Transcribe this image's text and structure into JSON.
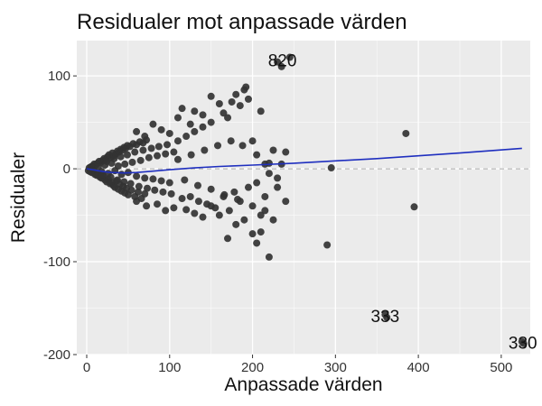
{
  "chart_data": {
    "type": "scatter",
    "title": "Residualer mot anpassade värden",
    "xlabel": "Anpassade värden",
    "ylabel": "Residualer",
    "xlim": [
      -12,
      535
    ],
    "ylim": [
      -200,
      138
    ],
    "x_ticks": [
      0,
      100,
      200,
      300,
      400,
      500
    ],
    "y_ticks": [
      -200,
      -100,
      0,
      100
    ],
    "x_tick_labels": [
      "0",
      "100",
      "200",
      "300",
      "400",
      "500"
    ],
    "y_tick_labels": [
      "-200",
      "-100",
      "0",
      "100"
    ],
    "grid": true,
    "reference_line_y": 0,
    "colors": {
      "panel_bg": "#ebebeb",
      "grid": "#ffffff",
      "points": "#333333",
      "smooth": "#1f2fbf",
      "reference": "#aaaaaa"
    },
    "series": [
      {
        "points": [
          [
            2,
            -2
          ],
          [
            3,
            1
          ],
          [
            4,
            -3
          ],
          [
            5,
            2
          ],
          [
            6,
            -4
          ],
          [
            7,
            3
          ],
          [
            8,
            -1
          ],
          [
            9,
            5
          ],
          [
            10,
            -6
          ],
          [
            11,
            4
          ],
          [
            12,
            -7
          ],
          [
            13,
            6
          ],
          [
            14,
            -5
          ],
          [
            15,
            8
          ],
          [
            16,
            -9
          ],
          [
            17,
            7
          ],
          [
            18,
            -10
          ],
          [
            19,
            9
          ],
          [
            20,
            -8
          ],
          [
            21,
            11
          ],
          [
            22,
            -12
          ],
          [
            23,
            10
          ],
          [
            24,
            -14
          ],
          [
            25,
            13
          ],
          [
            26,
            -11
          ],
          [
            27,
            15
          ],
          [
            28,
            -16
          ],
          [
            29,
            12
          ],
          [
            30,
            -15
          ],
          [
            31,
            17
          ],
          [
            32,
            -18
          ],
          [
            33,
            14
          ],
          [
            34,
            -20
          ],
          [
            35,
            16
          ],
          [
            36,
            -13
          ],
          [
            37,
            19
          ],
          [
            38,
            -22
          ],
          [
            39,
            18
          ],
          [
            40,
            -17
          ],
          [
            41,
            21
          ],
          [
            42,
            -24
          ],
          [
            43,
            20
          ],
          [
            44,
            -19
          ],
          [
            45,
            23
          ],
          [
            46,
            -26
          ],
          [
            47,
            22
          ],
          [
            48,
            -21
          ],
          [
            49,
            25
          ],
          [
            50,
            -28
          ],
          [
            52,
            24
          ],
          [
            54,
            -23
          ],
          [
            56,
            27
          ],
          [
            58,
            -30
          ],
          [
            60,
            26
          ],
          [
            62,
            -25
          ],
          [
            64,
            29
          ],
          [
            66,
            -32
          ],
          [
            68,
            28
          ],
          [
            70,
            -27
          ],
          [
            72,
            31
          ],
          [
            18,
            -3
          ],
          [
            22,
            4
          ],
          [
            26,
            -5
          ],
          [
            30,
            6
          ],
          [
            34,
            -2
          ],
          [
            38,
            3
          ],
          [
            42,
            -6
          ],
          [
            46,
            5
          ],
          [
            50,
            -4
          ],
          [
            55,
            7
          ],
          [
            60,
            -8
          ],
          [
            65,
            9
          ],
          [
            70,
            -10
          ],
          [
            75,
            12
          ],
          [
            80,
            -11
          ],
          [
            85,
            14
          ],
          [
            90,
            -13
          ],
          [
            95,
            16
          ],
          [
            100,
            -15
          ],
          [
            105,
            18
          ],
          [
            14,
            2
          ],
          [
            19,
            -6
          ],
          [
            24,
            8
          ],
          [
            29,
            -9
          ],
          [
            33,
            11
          ],
          [
            37,
            -12
          ],
          [
            41,
            13
          ],
          [
            45,
            -14
          ],
          [
            49,
            15
          ],
          [
            53,
            -16
          ],
          [
            58,
            18
          ],
          [
            63,
            -19
          ],
          [
            68,
            20
          ],
          [
            73,
            -21
          ],
          [
            78,
            22
          ],
          [
            82,
            -23
          ],
          [
            87,
            24
          ],
          [
            92,
            -25
          ],
          [
            97,
            26
          ],
          [
            102,
            -27
          ],
          [
            110,
            30
          ],
          [
            115,
            -32
          ],
          [
            120,
            35
          ],
          [
            125,
            -30
          ],
          [
            130,
            40
          ],
          [
            135,
            -35
          ],
          [
            140,
            45
          ],
          [
            145,
            -38
          ],
          [
            150,
            50
          ],
          [
            155,
            -42
          ],
          [
            110,
            10
          ],
          [
            118,
            -12
          ],
          [
            126,
            15
          ],
          [
            134,
            -18
          ],
          [
            142,
            20
          ],
          [
            150,
            -22
          ],
          [
            158,
            25
          ],
          [
            166,
            -28
          ],
          [
            174,
            30
          ],
          [
            182,
            -33
          ],
          [
            60,
            40
          ],
          [
            70,
            35
          ],
          [
            80,
            48
          ],
          [
            90,
            42
          ],
          [
            100,
            38
          ],
          [
            110,
            55
          ],
          [
            115,
            65
          ],
          [
            125,
            48
          ],
          [
            130,
            62
          ],
          [
            140,
            58
          ],
          [
            60,
            -35
          ],
          [
            72,
            -40
          ],
          [
            85,
            -38
          ],
          [
            95,
            -45
          ],
          [
            105,
            -42
          ],
          [
            120,
            -44
          ],
          [
            130,
            -48
          ],
          [
            140,
            -52
          ],
          [
            150,
            -40
          ],
          [
            160,
            -50
          ],
          [
            150,
            78
          ],
          [
            160,
            70
          ],
          [
            165,
            60
          ],
          [
            170,
            55
          ],
          [
            175,
            72
          ],
          [
            180,
            80
          ],
          [
            185,
            68
          ],
          [
            190,
            85
          ],
          [
            192,
            88
          ],
          [
            195,
            75
          ],
          [
            165,
            -30
          ],
          [
            172,
            -45
          ],
          [
            178,
            -25
          ],
          [
            185,
            -35
          ],
          [
            190,
            -55
          ],
          [
            195,
            -20
          ],
          [
            200,
            -40
          ],
          [
            205,
            -15
          ],
          [
            210,
            -50
          ],
          [
            215,
            -30
          ],
          [
            200,
            30
          ],
          [
            205,
            15
          ],
          [
            210,
            62
          ],
          [
            215,
            5
          ],
          [
            220,
            -5
          ],
          [
            225,
            20
          ],
          [
            230,
            -10
          ],
          [
            235,
            5
          ],
          [
            240,
            18
          ],
          [
            188,
            25
          ],
          [
            170,
            -75
          ],
          [
            180,
            -60
          ],
          [
            200,
            -70
          ],
          [
            205,
            -80
          ],
          [
            210,
            -68
          ],
          [
            220,
            -95
          ],
          [
            240,
            -35
          ],
          [
            230,
            -20
          ],
          [
            215,
            -45
          ],
          [
            225,
            -55
          ],
          [
            230,
            115
          ],
          [
            235,
            110
          ],
          [
            245,
            120
          ],
          [
            220,
            6
          ],
          [
            295,
            1
          ],
          [
            290,
            -82
          ],
          [
            385,
            38
          ],
          [
            395,
            -41
          ],
          [
            360,
            -157
          ],
          [
            362,
            -160
          ],
          [
            525,
            -186
          ],
          [
            527,
            -188
          ]
        ]
      }
    ],
    "smooth": {
      "x": [
        0,
        10,
        20,
        30,
        45,
        60,
        80,
        100,
        130,
        160,
        200,
        250,
        300,
        350,
        400,
        450,
        525
      ],
      "y": [
        0,
        -1.5,
        -3,
        -4,
        -4.5,
        -4,
        -2.5,
        -1,
        1,
        2.5,
        4,
        6,
        8.5,
        11,
        14,
        17,
        22
      ]
    },
    "annotations": [
      {
        "text": "820",
        "x": 236,
        "y": 117
      },
      {
        "text": "333",
        "x": 360,
        "y": -158
      },
      {
        "text": "330",
        "x": 526,
        "y": -187
      }
    ]
  }
}
